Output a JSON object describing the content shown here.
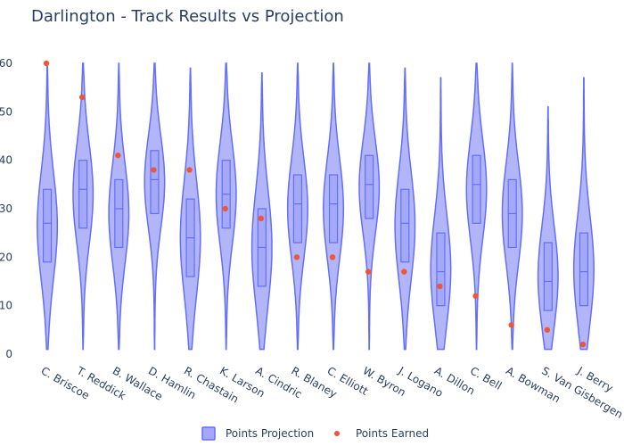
{
  "chart_data": {
    "type": "violin",
    "title": "Darlington - Track Results vs Projection",
    "ylim": [
      0,
      65
    ],
    "yticks": [
      0,
      10,
      20,
      30,
      40,
      50,
      60
    ],
    "grid": false,
    "legend_placement": "bottom-center",
    "colors": {
      "violin_fill": "#a4a9f7",
      "violin_line": "#636efa",
      "marker": "#ef553b",
      "text": "#2a3f5f"
    },
    "categories": [
      "C. Briscoe",
      "T. Reddick",
      "B. Wallace",
      "D. Hamlin",
      "R. Chastain",
      "K. Larson",
      "A. Cindric",
      "R. Blaney",
      "C. Elliott",
      "W. Byron",
      "J. Logano",
      "A. Dillon",
      "C. Bell",
      "A. Bowman",
      "S. Van Gisbergen",
      "J. Berry"
    ],
    "series": [
      {
        "name": "Points Projection",
        "distributions": [
          {
            "min": 1,
            "q1": 19,
            "median": 27,
            "q3": 34,
            "max": 60
          },
          {
            "min": 1,
            "q1": 26,
            "median": 34,
            "q3": 40,
            "max": 60
          },
          {
            "min": 1,
            "q1": 22,
            "median": 30,
            "q3": 36,
            "max": 60
          },
          {
            "min": 1,
            "q1": 29,
            "median": 36,
            "q3": 42,
            "max": 60
          },
          {
            "min": 1,
            "q1": 16,
            "median": 24,
            "q3": 32,
            "max": 59
          },
          {
            "min": 1,
            "q1": 26,
            "median": 33,
            "q3": 40,
            "max": 60
          },
          {
            "min": 1,
            "q1": 14,
            "median": 22,
            "q3": 30,
            "max": 58
          },
          {
            "min": 1,
            "q1": 23,
            "median": 31,
            "q3": 37,
            "max": 60
          },
          {
            "min": 1,
            "q1": 23,
            "median": 31,
            "q3": 37,
            "max": 60
          },
          {
            "min": 1,
            "q1": 28,
            "median": 35,
            "q3": 41,
            "max": 60
          },
          {
            "min": 1,
            "q1": 19,
            "median": 27,
            "q3": 34,
            "max": 59
          },
          {
            "min": 1,
            "q1": 10,
            "median": 17,
            "q3": 25,
            "max": 57
          },
          {
            "min": 1,
            "q1": 27,
            "median": 35,
            "q3": 41,
            "max": 60
          },
          {
            "min": 1,
            "q1": 22,
            "median": 29,
            "q3": 36,
            "max": 60
          },
          {
            "min": 1,
            "q1": 9,
            "median": 15,
            "q3": 23,
            "max": 51
          },
          {
            "min": 1,
            "q1": 10,
            "median": 17,
            "q3": 25,
            "max": 57
          }
        ]
      },
      {
        "name": "Points Earned",
        "values": [
          60,
          53,
          41,
          38,
          38,
          30,
          28,
          20,
          20,
          17,
          17,
          14,
          12,
          6,
          5,
          2
        ]
      }
    ]
  }
}
